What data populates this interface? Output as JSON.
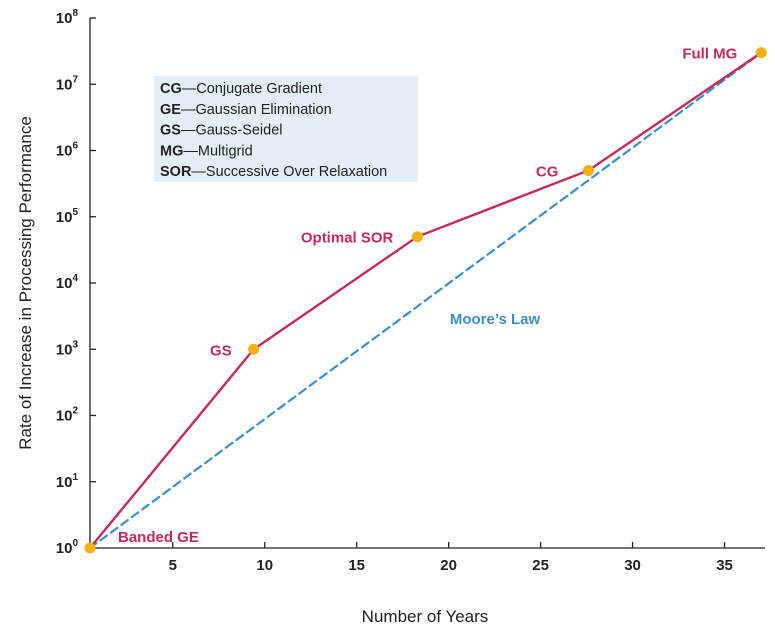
{
  "chart_data": {
    "type": "line",
    "xlabel": "Number of Years",
    "ylabel": "Rate of Increase in Processing Performance",
    "xlim": [
      0.5,
      37.2
    ],
    "ylim": [
      1,
      100000000
    ],
    "y_scale": "log",
    "grid": false,
    "x_ticks": [
      5,
      10,
      15,
      20,
      25,
      30,
      35
    ],
    "x_tick_labels": [
      "5",
      "10",
      "15",
      "20",
      "25",
      "30",
      "35"
    ],
    "y_ticks": [
      1,
      10,
      100,
      1000,
      10000,
      100000,
      1000000,
      10000000,
      100000000
    ],
    "y_tick_labels": [
      {
        "base": "10",
        "exp": "0"
      },
      {
        "base": "10",
        "exp": "1"
      },
      {
        "base": "10",
        "exp": "2"
      },
      {
        "base": "10",
        "exp": "3"
      },
      {
        "base": "10",
        "exp": "4"
      },
      {
        "base": "10",
        "exp": "5"
      },
      {
        "base": "10",
        "exp": "6"
      },
      {
        "base": "10",
        "exp": "7"
      },
      {
        "base": "10",
        "exp": "8"
      }
    ],
    "series": [
      {
        "style": "solid",
        "color": "#c8285a",
        "marker_color": "#f5b014",
        "points": [
          {
            "x": 0.5,
            "y": 1,
            "label": "Banded GE"
          },
          {
            "x": 9.4,
            "y": 1000,
            "label": "GS"
          },
          {
            "x": 18.3,
            "y": 50000,
            "label": "Optimal SOR"
          },
          {
            "x": 27.6,
            "y": 500000,
            "label": "CG"
          },
          {
            "x": 37.0,
            "y": 30000000,
            "label": "Full MG"
          }
        ]
      },
      {
        "name": "Moore’s Law",
        "style": "dashed",
        "color": "#3a8fd1",
        "points": [
          {
            "x": 0.5,
            "y": 1
          },
          {
            "x": 37.0,
            "y": 30000000
          }
        ]
      }
    ],
    "legend": {
      "placement": "top-left",
      "background": "#e4eef8",
      "entries": [
        {
          "abbr": "CG",
          "text": "—Conjugate Gradient"
        },
        {
          "abbr": "GE",
          "text": "—Gaussian Elimination"
        },
        {
          "abbr": "GS",
          "text": "—Gauss-Seidel"
        },
        {
          "abbr": "MG",
          "text": "—Multigrid"
        },
        {
          "abbr": "SOR",
          "text": "—Successive Over Relaxation"
        }
      ]
    },
    "colors": {
      "algorithm_line": "#c8285a",
      "moore_line": "#3a8fd1",
      "marker": "#f5b014",
      "axis": "#222222"
    }
  }
}
